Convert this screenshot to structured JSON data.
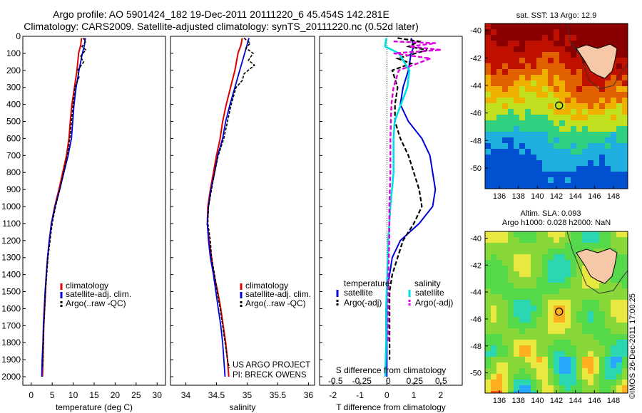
{
  "title_line1": "Argo profile: AO 5901424_182 19-Dec-2011 20111220_6 45.454S 142.281E",
  "title_line2": "Climatology: CARS2009. Satellite-adjusted climatology: synTS_20111220.nc (0.52d later)",
  "copyright": "©IMOS 26-Dec-2011 17:00:25",
  "colors": {
    "climatology": "#e00000",
    "satellite": "#0000dd",
    "argo": "#000000",
    "salinity_satellite": "#00e0e0",
    "salinity_argo": "#e000e0"
  },
  "legend_profile": [
    "climatology",
    "satellite-adj. clim.",
    "Argo(..raw -QC)"
  ],
  "legend_diff": {
    "temp_header": "temperature",
    "sal_header": "salinity",
    "temp_items": [
      "satellite",
      "Argo(-adj)"
    ],
    "sal_items": [
      "satellite",
      "Argo(-adj)"
    ]
  },
  "project": {
    "line1": "US ARGO PROJECT",
    "line2": "PI: BRECK OWENS"
  },
  "sst_map": {
    "title": "sat. SST: 13 Argo: 12.9"
  },
  "sla_map": {
    "title1": "Altim. SLA: 0.093",
    "title2": "Argo h1000: 0.028 h2000: NaN"
  },
  "chart_data": [
    {
      "type": "line",
      "xlabel": "temperature (deg C)",
      "xlim": [
        -2,
        32
      ],
      "ylim": [
        0,
        2050
      ],
      "xticks": [
        0,
        5,
        10,
        15,
        20,
        25,
        30
      ],
      "yticks": [
        0,
        100,
        200,
        300,
        400,
        500,
        600,
        700,
        800,
        900,
        1000,
        1100,
        1200,
        1300,
        1400,
        1500,
        1600,
        1700,
        1800,
        1900,
        2000
      ],
      "series": [
        {
          "name": "climatology",
          "values": [
            [
              12.0,
              10
            ],
            [
              11.8,
              50
            ],
            [
              11.3,
              100
            ],
            [
              10.9,
              200
            ],
            [
              10.3,
              300
            ],
            [
              9.7,
              400
            ],
            [
              9.3,
              500
            ],
            [
              9.0,
              600
            ],
            [
              8.4,
              700
            ],
            [
              7.5,
              800
            ],
            [
              6.6,
              900
            ],
            [
              5.6,
              1000
            ],
            [
              4.8,
              1100
            ],
            [
              4.3,
              1200
            ],
            [
              3.9,
              1300
            ],
            [
              3.6,
              1400
            ],
            [
              3.4,
              1500
            ],
            [
              3.2,
              1600
            ],
            [
              3.0,
              1700
            ],
            [
              2.9,
              1800
            ],
            [
              2.8,
              1900
            ],
            [
              2.7,
              2000
            ]
          ]
        },
        {
          "name": "satellite-adj. clim.",
          "values": [
            [
              12.9,
              10
            ],
            [
              12.7,
              50
            ],
            [
              12.2,
              100
            ],
            [
              11.4,
              200
            ],
            [
              10.7,
              300
            ],
            [
              10.2,
              400
            ],
            [
              9.9,
              500
            ],
            [
              9.6,
              600
            ],
            [
              8.8,
              700
            ],
            [
              7.8,
              800
            ],
            [
              6.8,
              900
            ],
            [
              5.7,
              1000
            ],
            [
              4.8,
              1100
            ],
            [
              4.3,
              1200
            ],
            [
              3.9,
              1300
            ],
            [
              3.6,
              1400
            ],
            [
              3.3,
              1500
            ],
            [
              3.1,
              1600
            ],
            [
              2.9,
              1700
            ],
            [
              2.8,
              1800
            ],
            [
              2.6,
              1900
            ],
            [
              2.5,
              2000
            ]
          ]
        },
        {
          "name": "Argo(..raw -QC)",
          "values": [
            [
              12.4,
              10
            ],
            [
              13.0,
              30
            ],
            [
              12.1,
              60
            ],
            [
              13.0,
              80
            ],
            [
              11.7,
              120
            ],
            [
              12.5,
              150
            ],
            [
              11.1,
              200
            ],
            [
              11.4,
              240
            ],
            [
              10.4,
              300
            ],
            [
              10.0,
              400
            ],
            [
              9.6,
              500
            ],
            [
              9.2,
              600
            ],
            [
              8.6,
              700
            ],
            [
              7.7,
              800
            ],
            [
              6.8,
              900
            ],
            [
              5.8,
              1000
            ],
            [
              5.0,
              1100
            ],
            [
              4.5,
              1200
            ],
            [
              4.0,
              1300
            ],
            [
              3.7,
              1400
            ],
            [
              3.4,
              1500
            ],
            [
              3.2,
              1600
            ],
            [
              3.0,
              1700
            ],
            [
              2.9,
              1800
            ],
            [
              2.8,
              1900
            ],
            [
              2.7,
              1950
            ]
          ]
        }
      ]
    },
    {
      "type": "line",
      "xlabel": "salinity",
      "xlim": [
        33.75,
        36.1
      ],
      "ylim": [
        0,
        2050
      ],
      "xticks": [
        34,
        34.5,
        35,
        35.5,
        36
      ],
      "series": [
        {
          "name": "climatology",
          "values": [
            [
              34.92,
              10
            ],
            [
              34.9,
              50
            ],
            [
              34.85,
              100
            ],
            [
              34.8,
              200
            ],
            [
              34.73,
              300
            ],
            [
              34.66,
              400
            ],
            [
              34.6,
              500
            ],
            [
              34.56,
              600
            ],
            [
              34.5,
              700
            ],
            [
              34.45,
              800
            ],
            [
              34.4,
              900
            ],
            [
              34.36,
              1000
            ],
            [
              34.35,
              1100
            ],
            [
              34.38,
              1200
            ],
            [
              34.42,
              1300
            ],
            [
              34.46,
              1400
            ],
            [
              34.52,
              1500
            ],
            [
              34.57,
              1600
            ],
            [
              34.61,
              1700
            ],
            [
              34.65,
              1800
            ],
            [
              34.68,
              1900
            ],
            [
              34.7,
              2000
            ]
          ]
        },
        {
          "name": "satellite-adj. clim.",
          "values": [
            [
              35.03,
              10
            ],
            [
              35.0,
              50
            ],
            [
              34.96,
              100
            ],
            [
              34.88,
              200
            ],
            [
              34.8,
              300
            ],
            [
              34.72,
              400
            ],
            [
              34.65,
              500
            ],
            [
              34.6,
              600
            ],
            [
              34.52,
              700
            ],
            [
              34.47,
              800
            ],
            [
              34.41,
              900
            ],
            [
              34.37,
              1000
            ],
            [
              34.35,
              1100
            ],
            [
              34.37,
              1200
            ],
            [
              34.4,
              1300
            ],
            [
              34.45,
              1400
            ],
            [
              34.49,
              1500
            ],
            [
              34.53,
              1600
            ],
            [
              34.57,
              1700
            ],
            [
              34.6,
              1800
            ],
            [
              34.62,
              1900
            ],
            [
              34.64,
              2000
            ]
          ]
        },
        {
          "name": "Argo(..raw -QC)",
          "values": [
            [
              34.95,
              10
            ],
            [
              35.05,
              40
            ],
            [
              34.98,
              70
            ],
            [
              35.1,
              100
            ],
            [
              35.02,
              140
            ],
            [
              35.12,
              170
            ],
            [
              34.95,
              220
            ],
            [
              34.92,
              260
            ],
            [
              34.82,
              300
            ],
            [
              34.74,
              400
            ],
            [
              34.68,
              500
            ],
            [
              34.62,
              600
            ],
            [
              34.53,
              700
            ],
            [
              34.47,
              800
            ],
            [
              34.42,
              900
            ],
            [
              34.37,
              1000
            ],
            [
              34.36,
              1100
            ],
            [
              34.4,
              1200
            ],
            [
              34.42,
              1300
            ],
            [
              34.47,
              1400
            ],
            [
              34.51,
              1500
            ],
            [
              34.56,
              1600
            ],
            [
              34.6,
              1700
            ],
            [
              34.64,
              1800
            ],
            [
              34.68,
              1900
            ],
            [
              34.71,
              1950
            ]
          ]
        }
      ]
    },
    {
      "type": "line",
      "xlabel": "T difference from climatology",
      "xlabel_top": "S difference from climatology",
      "xlim": [
        -2.5,
        2.8
      ],
      "xticks": [
        -2,
        -1,
        0,
        1,
        2
      ],
      "xlim_salinity": [
        -0.65,
        0.7
      ],
      "xticks_salinity": [
        -0.5,
        -0.25,
        0,
        0.25,
        0.5
      ],
      "ylim": [
        0,
        2050
      ],
      "series": [
        {
          "name": "temperature satellite",
          "values": [
            [
              0.9,
              10
            ],
            [
              1.0,
              60
            ],
            [
              0.9,
              100
            ],
            [
              0.8,
              200
            ],
            [
              0.6,
              300
            ],
            [
              0.5,
              400
            ],
            [
              0.8,
              500
            ],
            [
              1.3,
              600
            ],
            [
              1.6,
              700
            ],
            [
              1.7,
              800
            ],
            [
              1.8,
              900
            ],
            [
              1.7,
              1000
            ],
            [
              1.2,
              1100
            ],
            [
              0.5,
              1200
            ],
            [
              0.2,
              1300
            ],
            [
              0.1,
              1400
            ],
            [
              0.0,
              1500
            ],
            [
              0.0,
              1700
            ],
            [
              0.0,
              2000
            ]
          ]
        },
        {
          "name": "temperature Argo(-adj)",
          "values": [
            [
              0.4,
              10
            ],
            [
              1.2,
              30
            ],
            [
              0.8,
              60
            ],
            [
              1.5,
              80
            ],
            [
              0.4,
              130
            ],
            [
              0.9,
              160
            ],
            [
              0.2,
              200
            ],
            [
              0.4,
              300
            ],
            [
              0.3,
              400
            ],
            [
              0.3,
              500
            ],
            [
              0.5,
              600
            ],
            [
              0.8,
              700
            ],
            [
              1.0,
              800
            ],
            [
              1.2,
              900
            ],
            [
              1.3,
              1000
            ],
            [
              1.0,
              1100
            ],
            [
              0.6,
              1200
            ],
            [
              0.4,
              1300
            ],
            [
              0.2,
              1400
            ],
            [
              0.1,
              1500
            ],
            [
              0.1,
              1700
            ],
            [
              0.1,
              1900
            ]
          ]
        },
        {
          "name": "salinity satellite",
          "values": [
            [
              -0.02,
              10
            ],
            [
              -0.03,
              60
            ],
            [
              0.1,
              100
            ],
            [
              0.2,
              200
            ],
            [
              0.18,
              300
            ],
            [
              0.12,
              400
            ],
            [
              0.06,
              500
            ],
            [
              0.05,
              600
            ],
            [
              0.05,
              800
            ],
            [
              0.02,
              1000
            ],
            [
              0.0,
              1200
            ],
            [
              -0.01,
              1400
            ],
            [
              -0.02,
              1600
            ],
            [
              -0.02,
              1800
            ],
            [
              -0.03,
              2000
            ]
          ]
        },
        {
          "name": "salinity Argo(-adj)",
          "values": [
            [
              0.05,
              30
            ],
            [
              0.45,
              40
            ],
            [
              0.2,
              60
            ],
            [
              0.5,
              80
            ],
            [
              0.05,
              100
            ],
            [
              0.4,
              130
            ],
            [
              0.1,
              200
            ],
            [
              0.05,
              300
            ],
            [
              0.03,
              400
            ],
            [
              0.02,
              600
            ],
            [
              0.02,
              800
            ],
            [
              0.01,
              1000
            ],
            [
              0.01,
              1200
            ],
            [
              0.0,
              1400
            ],
            [
              0.0,
              1600
            ],
            [
              0.0,
              1800
            ]
          ]
        }
      ]
    }
  ],
  "maps": {
    "xticks": [
      136,
      138,
      140,
      142,
      144,
      146,
      148
    ],
    "yticks_sst": [
      -40,
      -42,
      -44,
      -46,
      -48,
      -50
    ],
    "yticks_sla": [
      -40,
      -42,
      -44,
      -46,
      -48,
      -50
    ],
    "lon_range": [
      134.5,
      149.5
    ],
    "lat_range": [
      -51.5,
      -39.5
    ],
    "argo_position": [
      142.281,
      -45.454
    ]
  }
}
